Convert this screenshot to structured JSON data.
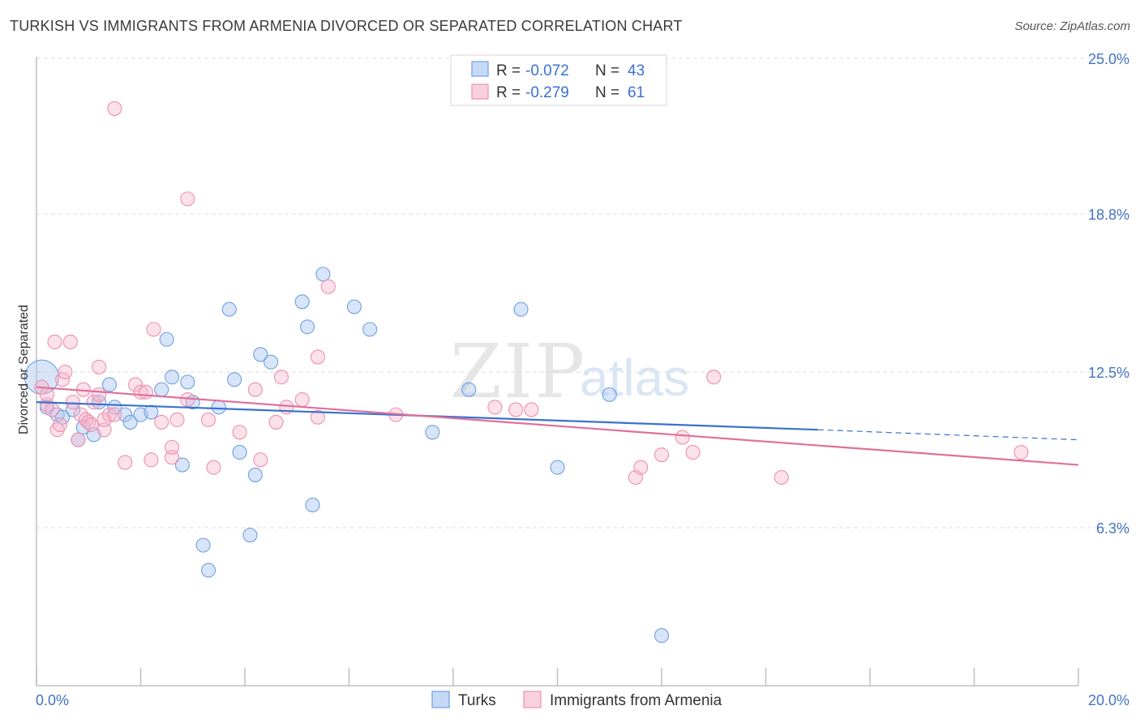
{
  "header": {
    "title": "TURKISH VS IMMIGRANTS FROM ARMENIA DIVORCED OR SEPARATED CORRELATION CHART",
    "source": "Source: ZipAtlas.com"
  },
  "watermark": {
    "part1": "ZIP",
    "part2": "atlas"
  },
  "legend_top": {
    "rows": [
      {
        "r_label": "R =",
        "r_value": "-0.072",
        "n_label": "N =",
        "n_value": "43",
        "color": "#6f9fe0"
      },
      {
        "r_label": "R =",
        "r_value": "-0.279",
        "n_label": "N =",
        "n_value": "61",
        "color": "#ee8fae"
      }
    ]
  },
  "legend_bottom": {
    "items": [
      {
        "label": "Turks",
        "color": "#6f9fe0"
      },
      {
        "label": "Immigrants from Armenia",
        "color": "#ee8fae"
      }
    ]
  },
  "chart_data": {
    "type": "scatter",
    "title": "TURKISH VS IMMIGRANTS FROM ARMENIA DIVORCED OR SEPARATED CORRELATION CHART",
    "xlabel": "",
    "ylabel": "Divorced or Separated",
    "xlim": [
      0,
      20
    ],
    "ylim": [
      0,
      25.0
    ],
    "x_tick_labels": [
      "0.0%",
      "20.0%"
    ],
    "y_ticks": [
      6.3,
      12.5,
      18.8,
      25.0
    ],
    "y_tick_labels": [
      "6.3%",
      "12.5%",
      "18.8%",
      "25.0%"
    ],
    "grid": "horizontal dashed",
    "legend_position": "top-center",
    "series": [
      {
        "name": "Turks",
        "color": "#6f9fe0",
        "r": -0.072,
        "n": 43,
        "trend": {
          "x": [
            0.0,
            15.0
          ],
          "y": [
            11.3,
            10.2
          ]
        },
        "trend_extension": {
          "x": [
            15.0,
            20.0
          ],
          "y": [
            10.2,
            9.8
          ]
        },
        "points": [
          {
            "x": 0.1,
            "y": 12.3,
            "big": true
          },
          {
            "x": 0.2,
            "y": 11.1
          },
          {
            "x": 0.4,
            "y": 10.8
          },
          {
            "x": 0.5,
            "y": 10.7
          },
          {
            "x": 0.7,
            "y": 11.0
          },
          {
            "x": 0.8,
            "y": 9.8
          },
          {
            "x": 0.9,
            "y": 10.3
          },
          {
            "x": 1.1,
            "y": 10.0
          },
          {
            "x": 1.2,
            "y": 11.3
          },
          {
            "x": 1.4,
            "y": 12.0
          },
          {
            "x": 1.5,
            "y": 11.1
          },
          {
            "x": 1.7,
            "y": 10.8
          },
          {
            "x": 1.8,
            "y": 10.5
          },
          {
            "x": 2.0,
            "y": 10.8
          },
          {
            "x": 2.2,
            "y": 10.9
          },
          {
            "x": 2.4,
            "y": 11.8
          },
          {
            "x": 2.5,
            "y": 13.8
          },
          {
            "x": 2.6,
            "y": 12.3
          },
          {
            "x": 2.8,
            "y": 8.8
          },
          {
            "x": 2.9,
            "y": 12.1
          },
          {
            "x": 3.0,
            "y": 11.3
          },
          {
            "x": 3.2,
            "y": 5.6
          },
          {
            "x": 3.3,
            "y": 4.6
          },
          {
            "x": 3.5,
            "y": 11.1
          },
          {
            "x": 3.7,
            "y": 15.0
          },
          {
            "x": 3.8,
            "y": 12.2
          },
          {
            "x": 3.9,
            "y": 9.3
          },
          {
            "x": 4.1,
            "y": 6.0
          },
          {
            "x": 4.2,
            "y": 8.4
          },
          {
            "x": 4.3,
            "y": 13.2
          },
          {
            "x": 4.5,
            "y": 12.9
          },
          {
            "x": 5.1,
            "y": 15.3
          },
          {
            "x": 5.2,
            "y": 14.3
          },
          {
            "x": 5.3,
            "y": 7.2
          },
          {
            "x": 5.5,
            "y": 16.4
          },
          {
            "x": 6.1,
            "y": 15.1
          },
          {
            "x": 6.4,
            "y": 14.2
          },
          {
            "x": 7.6,
            "y": 10.1
          },
          {
            "x": 8.3,
            "y": 11.8
          },
          {
            "x": 9.3,
            "y": 15.0
          },
          {
            "x": 10.0,
            "y": 8.7
          },
          {
            "x": 11.0,
            "y": 11.6
          },
          {
            "x": 12.0,
            "y": 2.0
          }
        ]
      },
      {
        "name": "Immigrants from Armenia",
        "color": "#ee8fae",
        "r": -0.279,
        "n": 61,
        "trend": {
          "x": [
            0.0,
            20.0
          ],
          "y": [
            11.9,
            8.8
          ]
        },
        "points": [
          {
            "x": 0.1,
            "y": 11.9
          },
          {
            "x": 0.2,
            "y": 11.2
          },
          {
            "x": 0.2,
            "y": 11.6
          },
          {
            "x": 0.3,
            "y": 11.0
          },
          {
            "x": 0.35,
            "y": 13.7
          },
          {
            "x": 0.4,
            "y": 10.2
          },
          {
            "x": 0.45,
            "y": 10.4
          },
          {
            "x": 0.5,
            "y": 12.2
          },
          {
            "x": 0.55,
            "y": 12.5
          },
          {
            "x": 0.65,
            "y": 13.7
          },
          {
            "x": 0.7,
            "y": 11.3
          },
          {
            "x": 0.8,
            "y": 9.8
          },
          {
            "x": 0.85,
            "y": 10.8
          },
          {
            "x": 0.9,
            "y": 11.8
          },
          {
            "x": 0.95,
            "y": 10.6
          },
          {
            "x": 1.0,
            "y": 10.5
          },
          {
            "x": 1.05,
            "y": 10.4
          },
          {
            "x": 1.1,
            "y": 11.3
          },
          {
            "x": 1.2,
            "y": 11.6
          },
          {
            "x": 1.2,
            "y": 12.7
          },
          {
            "x": 1.3,
            "y": 10.2
          },
          {
            "x": 1.3,
            "y": 10.6
          },
          {
            "x": 1.4,
            "y": 10.8
          },
          {
            "x": 1.5,
            "y": 10.8
          },
          {
            "x": 1.5,
            "y": 23.0
          },
          {
            "x": 1.7,
            "y": 8.9
          },
          {
            "x": 1.9,
            "y": 12.0
          },
          {
            "x": 2.0,
            "y": 11.7
          },
          {
            "x": 2.1,
            "y": 11.7
          },
          {
            "x": 2.2,
            "y": 9.0
          },
          {
            "x": 2.25,
            "y": 14.2
          },
          {
            "x": 2.4,
            "y": 10.5
          },
          {
            "x": 2.6,
            "y": 9.1
          },
          {
            "x": 2.6,
            "y": 9.5
          },
          {
            "x": 2.7,
            "y": 10.6
          },
          {
            "x": 2.9,
            "y": 19.4
          },
          {
            "x": 2.9,
            "y": 11.4
          },
          {
            "x": 3.3,
            "y": 10.6
          },
          {
            "x": 3.4,
            "y": 8.7
          },
          {
            "x": 3.9,
            "y": 10.1
          },
          {
            "x": 4.2,
            "y": 11.8
          },
          {
            "x": 4.3,
            "y": 9.0
          },
          {
            "x": 4.6,
            "y": 10.5
          },
          {
            "x": 4.7,
            "y": 12.3
          },
          {
            "x": 4.8,
            "y": 11.1
          },
          {
            "x": 5.1,
            "y": 11.4
          },
          {
            "x": 5.4,
            "y": 10.7
          },
          {
            "x": 5.4,
            "y": 13.1
          },
          {
            "x": 5.6,
            "y": 15.9
          },
          {
            "x": 6.9,
            "y": 10.8
          },
          {
            "x": 8.8,
            "y": 11.1
          },
          {
            "x": 9.2,
            "y": 11.0
          },
          {
            "x": 9.5,
            "y": 11.0
          },
          {
            "x": 11.5,
            "y": 8.3
          },
          {
            "x": 11.6,
            "y": 8.7
          },
          {
            "x": 12.0,
            "y": 9.2
          },
          {
            "x": 12.4,
            "y": 9.9
          },
          {
            "x": 12.6,
            "y": 9.3
          },
          {
            "x": 13.0,
            "y": 12.3
          },
          {
            "x": 14.3,
            "y": 8.3
          },
          {
            "x": 18.9,
            "y": 9.3
          }
        ]
      }
    ]
  }
}
